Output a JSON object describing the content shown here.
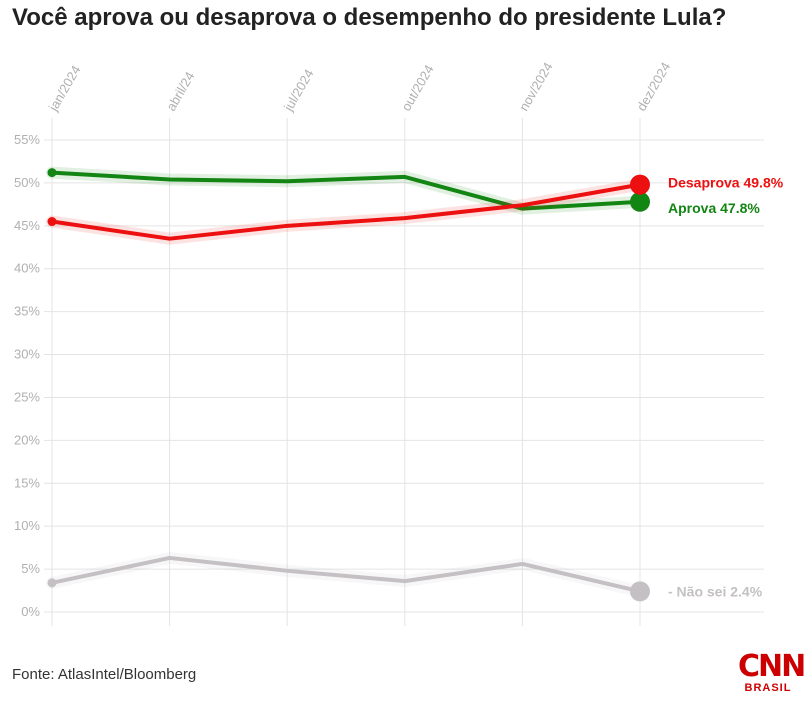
{
  "title": "Você aprova ou desaprova o desempenho do presidente Lula?",
  "source": "Fonte: AtlasIntel/Bloomberg",
  "logo": {
    "name": "CNN",
    "sub": "BRASIL",
    "color": "#cc0000"
  },
  "chart_data": {
    "type": "line",
    "title": "Você aprova ou desaprova o desempenho do presidente Lula?",
    "x_ticks": [
      {
        "label": "jan/2024",
        "x": 0
      },
      {
        "label": "abril/24",
        "x": 3
      },
      {
        "label": "jul/2024",
        "x": 6
      },
      {
        "label": "out/2024",
        "x": 9
      },
      {
        "label": "nov/2024",
        "x": 12
      },
      {
        "label": "dez/2024",
        "x": 15
      }
    ],
    "xlim": [
      0,
      15
    ],
    "ylim": [
      0,
      55
    ],
    "y_ticks": [
      0,
      5,
      10,
      15,
      20,
      25,
      30,
      35,
      40,
      45,
      50,
      55
    ],
    "y_tick_format": "%",
    "grid": true,
    "series": [
      {
        "name": "Aprova",
        "color": "#138513",
        "end_label": "Aprova 47.8%",
        "points": [
          {
            "x": 0,
            "y": 51.2
          },
          {
            "x": 3,
            "y": 50.4
          },
          {
            "x": 6,
            "y": 50.2
          },
          {
            "x": 9,
            "y": 50.7
          },
          {
            "x": 12,
            "y": 47.0
          },
          {
            "x": 15,
            "y": 47.8
          }
        ]
      },
      {
        "name": "Desaprova",
        "color": "#ec1010",
        "end_label": "Desaprova 49.8%",
        "points": [
          {
            "x": 0,
            "y": 45.5
          },
          {
            "x": 3,
            "y": 43.5
          },
          {
            "x": 6,
            "y": 45.0
          },
          {
            "x": 9,
            "y": 45.9
          },
          {
            "x": 12,
            "y": 47.4
          },
          {
            "x": 15,
            "y": 49.8
          }
        ]
      },
      {
        "name": "Não sei",
        "color": "#c4c0c4",
        "end_label": "- Não sei 2.4%",
        "points": [
          {
            "x": 0,
            "y": 3.4
          },
          {
            "x": 3,
            "y": 6.3
          },
          {
            "x": 6,
            "y": 4.8
          },
          {
            "x": 9,
            "y": 3.6
          },
          {
            "x": 12,
            "y": 5.6
          },
          {
            "x": 15,
            "y": 2.4
          }
        ]
      }
    ]
  }
}
